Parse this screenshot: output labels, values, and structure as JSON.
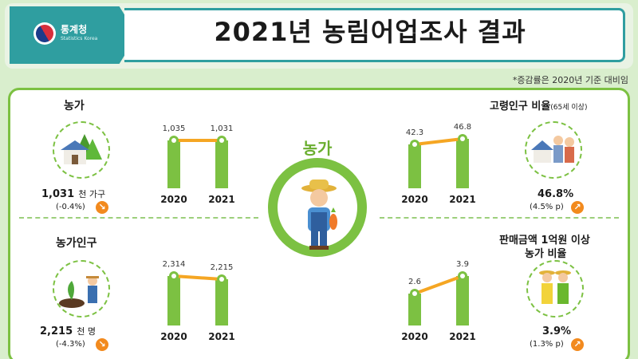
{
  "header": {
    "logo_ko": "통계청",
    "logo_en": "Statistics Korea",
    "title": "2021년 농림어업조사 결과"
  },
  "note": "*증감률은 2020년 기준 대비임",
  "center": {
    "title": "농가"
  },
  "colors": {
    "bar": "#7cc142",
    "line": "#f5a623",
    "accent": "#2f9ea0",
    "arrow": "#f28a1e"
  },
  "panels": {
    "households": {
      "label": "농가",
      "value": "1,031",
      "unit": "천 가구",
      "change": "(-0.4%)",
      "icon": "farmhouse-icon",
      "chart_data": {
        "type": "bar",
        "categories": [
          "2020",
          "2021"
        ],
        "values": [
          1035,
          1031
        ],
        "labels": [
          "1,035",
          "1,031"
        ]
      }
    },
    "population": {
      "label": "농가인구",
      "value": "2,215",
      "unit": "천 명",
      "change": "(-4.3%)",
      "icon": "farmer-planting-icon",
      "chart_data": {
        "type": "bar",
        "categories": [
          "2020",
          "2021"
        ],
        "values": [
          2314,
          2215
        ],
        "labels": [
          "2,314",
          "2,215"
        ]
      }
    },
    "elderly": {
      "label": "고령인구 비율",
      "label_small": "(65세 이상)",
      "value": "46.8%",
      "change": "(4.5% p)",
      "icon": "elderly-couple-icon",
      "chart_data": {
        "type": "bar",
        "categories": [
          "2020",
          "2021"
        ],
        "values": [
          42.3,
          46.8
        ],
        "labels": [
          "42.3",
          "46.8"
        ]
      }
    },
    "sales": {
      "label_line1": "판매금액 1억원 이상",
      "label_line2": "농가 비율",
      "value": "3.9%",
      "change": "(1.3% p)",
      "icon": "farmer-couple-icon",
      "chart_data": {
        "type": "bar",
        "categories": [
          "2020",
          "2021"
        ],
        "values": [
          2.6,
          3.9
        ],
        "labels": [
          "2.6",
          "3.9"
        ]
      }
    }
  }
}
